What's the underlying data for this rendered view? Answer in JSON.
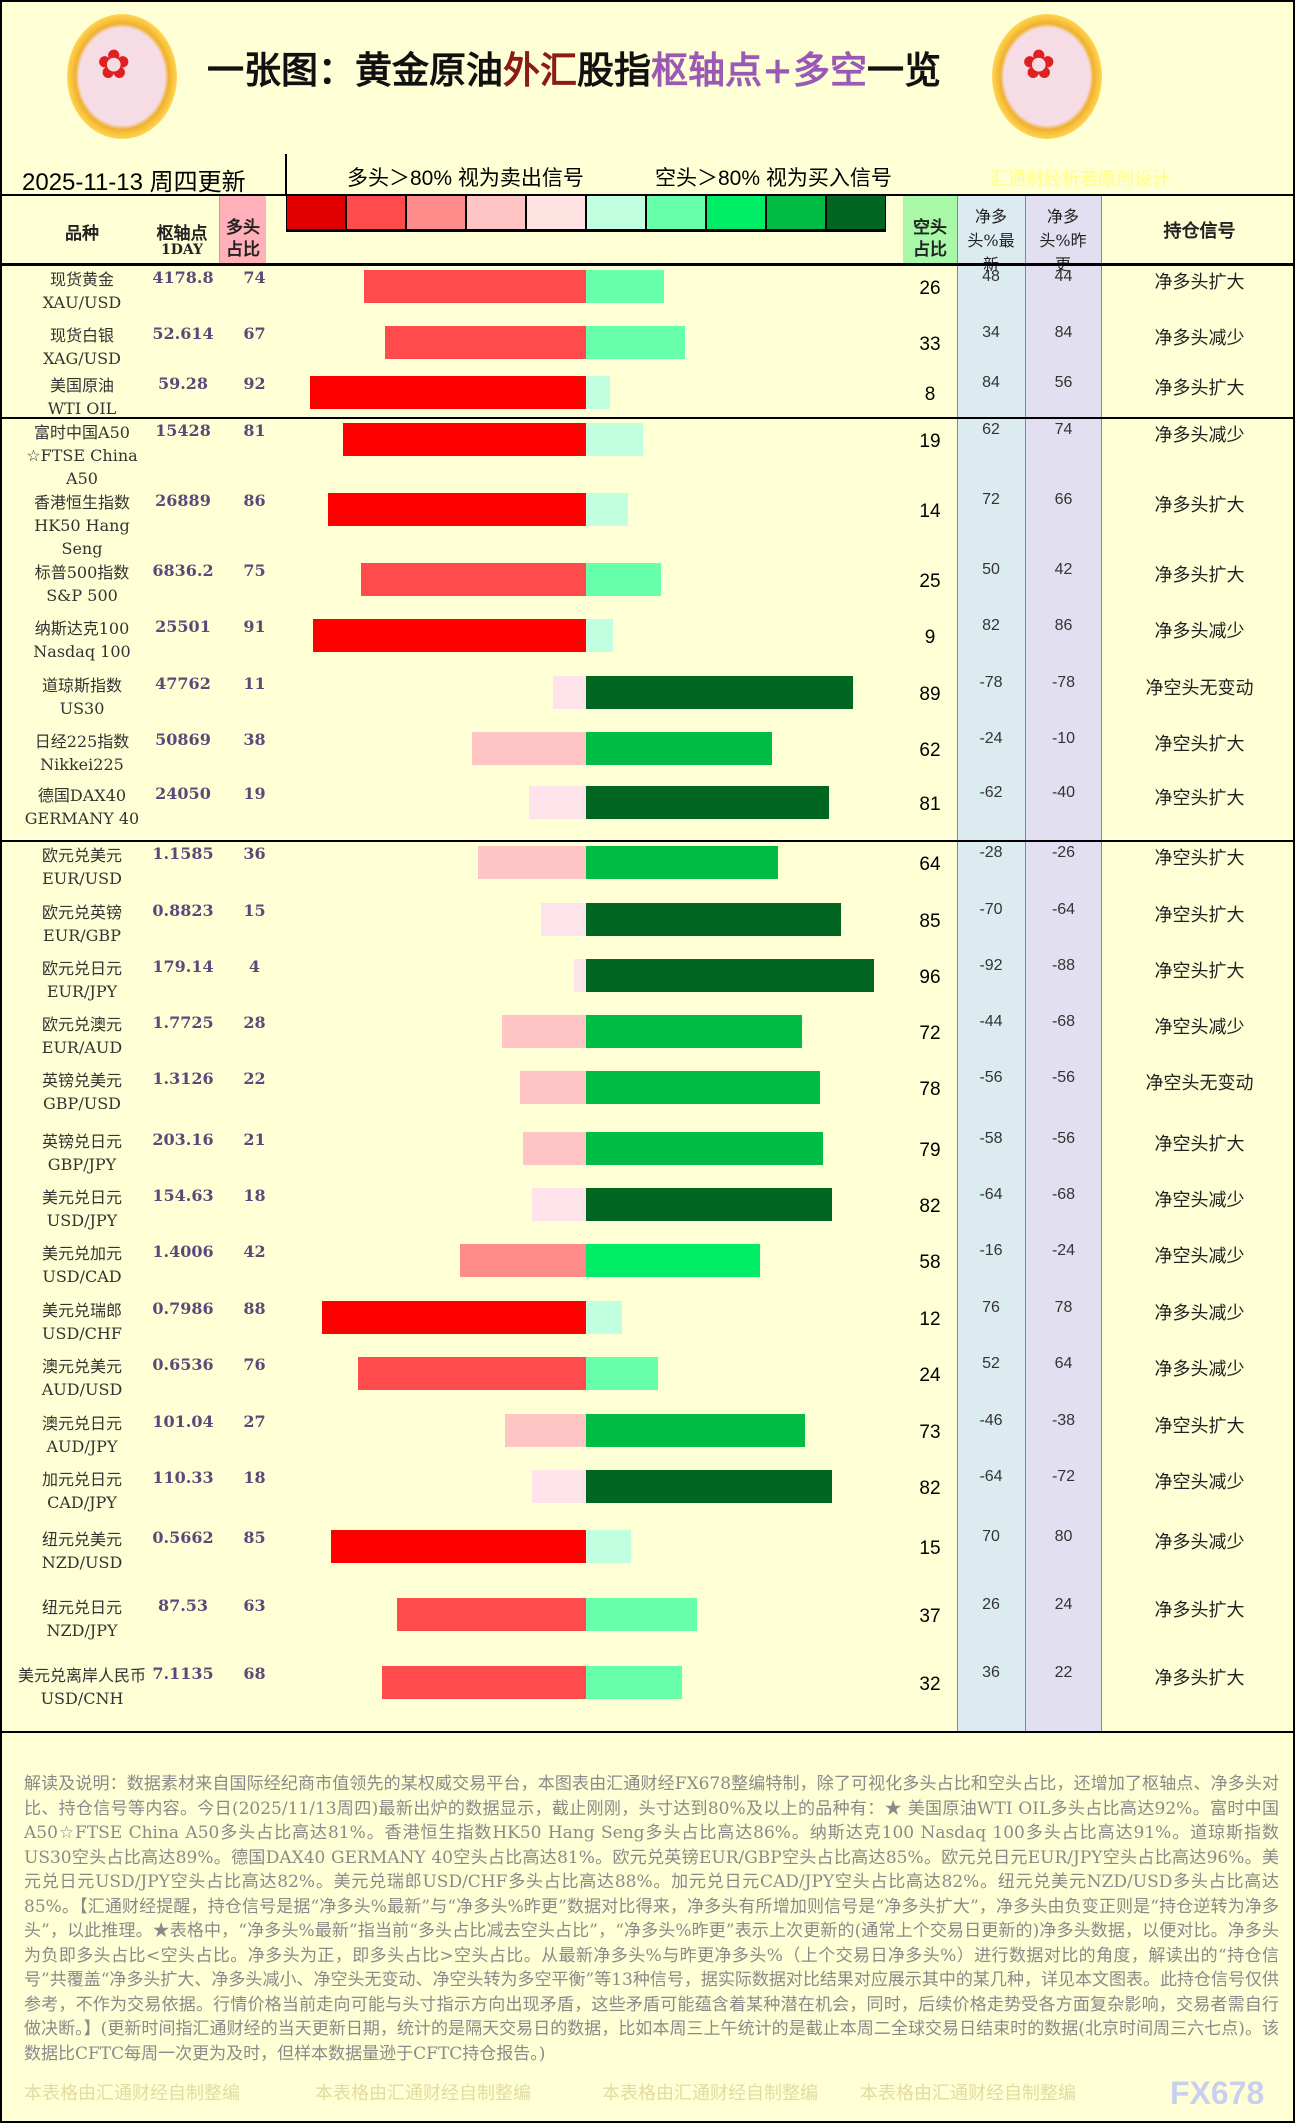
{
  "title": {
    "part1": "一张图：黄金原油",
    "part2": "外汇",
    "part3": "股指",
    "part4": "枢轴点+多空",
    "part5": "一览"
  },
  "date": "2025-11-13 周四更新",
  "long_signal": "多头＞80% 视为卖出信号",
  "short_signal": "空头＞80% 视为买入信号",
  "credit": "汇通财经析若原创设计",
  "headers": {
    "name": "品种",
    "pivot": "枢轴点",
    "pivot_sub": "1DAY",
    "long": "多头占比",
    "short": "空头占比",
    "net": "净多头%最新",
    "prev": "净多头%昨更",
    "signal": "持仓信号"
  },
  "legend_colors": [
    "#e00000",
    "#ff4b4b",
    "#ff8a8a",
    "#ffc4c4",
    "#ffe3e3",
    "#c0ffe0",
    "#66ffaa",
    "#00ee66",
    "#00bb44",
    "#006622"
  ],
  "rows": [
    {
      "name": "现货黄金",
      "code": "XAU/USD",
      "pivot": "4178.8",
      "long": 74,
      "short": 26,
      "net": "48",
      "prev": "44",
      "signal": "净多头扩大"
    },
    {
      "name": "现货白银",
      "code": "XAG/USD",
      "pivot": "52.614",
      "long": 67,
      "short": 33,
      "net": "34",
      "prev": "84",
      "signal": "净多头减少"
    },
    {
      "name": "美国原油",
      "code": "WTI OIL",
      "pivot": "59.28",
      "long": 92,
      "short": 8,
      "net": "84",
      "prev": "56",
      "signal": "净多头扩大"
    },
    {
      "name": "富时中国A50",
      "code": "☆FTSE China A50",
      "pivot": "15428",
      "long": 81,
      "short": 19,
      "net": "62",
      "prev": "74",
      "signal": "净多头减少"
    },
    {
      "name": "香港恒生指数",
      "code": "HK50 Hang Seng",
      "pivot": "26889",
      "long": 86,
      "short": 14,
      "net": "72",
      "prev": "66",
      "signal": "净多头扩大"
    },
    {
      "name": "标普500指数",
      "code": "S&P 500",
      "pivot": "6836.2",
      "long": 75,
      "short": 25,
      "net": "50",
      "prev": "42",
      "signal": "净多头扩大"
    },
    {
      "name": "纳斯达克100",
      "code": "Nasdaq 100",
      "pivot": "25501",
      "long": 91,
      "short": 9,
      "net": "82",
      "prev": "86",
      "signal": "净多头减少"
    },
    {
      "name": "道琼斯指数",
      "code": "US30",
      "pivot": "47762",
      "long": 11,
      "short": 89,
      "net": "-78",
      "prev": "-78",
      "signal": "净空头无变动"
    },
    {
      "name": "日经225指数",
      "code": "Nikkei225",
      "pivot": "50869",
      "long": 38,
      "short": 62,
      "net": "-24",
      "prev": "-10",
      "signal": "净空头扩大"
    },
    {
      "name": "德国DAX40",
      "code": "GERMANY 40",
      "pivot": "24050",
      "long": 19,
      "short": 81,
      "net": "-62",
      "prev": "-40",
      "signal": "净空头扩大"
    },
    {
      "name": "欧元兑美元",
      "code": "EUR/USD",
      "pivot": "1.1585",
      "long": 36,
      "short": 64,
      "net": "-28",
      "prev": "-26",
      "signal": "净空头扩大"
    },
    {
      "name": "欧元兑英镑",
      "code": "EUR/GBP",
      "pivot": "0.8823",
      "long": 15,
      "short": 85,
      "net": "-70",
      "prev": "-64",
      "signal": "净空头扩大"
    },
    {
      "name": "欧元兑日元",
      "code": "EUR/JPY",
      "pivot": "179.14",
      "long": 4,
      "short": 96,
      "net": "-92",
      "prev": "-88",
      "signal": "净空头扩大"
    },
    {
      "name": "欧元兑澳元",
      "code": "EUR/AUD",
      "pivot": "1.7725",
      "long": 28,
      "short": 72,
      "net": "-44",
      "prev": "-68",
      "signal": "净空头减少"
    },
    {
      "name": "英镑兑美元",
      "code": "GBP/USD",
      "pivot": "1.3126",
      "long": 22,
      "short": 78,
      "net": "-56",
      "prev": "-56",
      "signal": "净空头无变动"
    },
    {
      "name": "英镑兑日元",
      "code": "GBP/JPY",
      "pivot": "203.16",
      "long": 21,
      "short": 79,
      "net": "-58",
      "prev": "-56",
      "signal": "净空头扩大"
    },
    {
      "name": "美元兑日元",
      "code": "USD/JPY",
      "pivot": "154.63",
      "long": 18,
      "short": 82,
      "net": "-64",
      "prev": "-68",
      "signal": "净空头减少"
    },
    {
      "name": "美元兑加元",
      "code": "USD/CAD",
      "pivot": "1.4006",
      "long": 42,
      "short": 58,
      "net": "-16",
      "prev": "-24",
      "signal": "净空头减少"
    },
    {
      "name": "美元兑瑞郎",
      "code": "USD/CHF",
      "pivot": "0.7986",
      "long": 88,
      "short": 12,
      "net": "76",
      "prev": "78",
      "signal": "净多头减少"
    },
    {
      "name": "澳元兑美元",
      "code": "AUD/USD",
      "pivot": "0.6536",
      "long": 76,
      "short": 24,
      "net": "52",
      "prev": "64",
      "signal": "净多头减少"
    },
    {
      "name": "澳元兑日元",
      "code": "AUD/JPY",
      "pivot": "101.04",
      "long": 27,
      "short": 73,
      "net": "-46",
      "prev": "-38",
      "signal": "净空头扩大"
    },
    {
      "name": "加元兑日元",
      "code": "CAD/JPY",
      "pivot": "110.33",
      "long": 18,
      "short": 82,
      "net": "-64",
      "prev": "-72",
      "signal": "净空头减少"
    },
    {
      "name": "纽元兑美元",
      "code": "NZD/USD",
      "pivot": "0.5662",
      "long": 85,
      "short": 15,
      "net": "70",
      "prev": "80",
      "signal": "净多头减少"
    },
    {
      "name": "纽元兑日元",
      "code": "NZD/JPY",
      "pivot": "87.53",
      "long": 63,
      "short": 37,
      "net": "26",
      "prev": "24",
      "signal": "净多头扩大"
    },
    {
      "name": "美元兑离岸人民币",
      "code": "USD/CNH",
      "pivot": "7.1135",
      "long": 68,
      "short": 32,
      "net": "36",
      "prev": "22",
      "signal": "净多头扩大"
    }
  ],
  "explanation": "解读及说明：数据素材来自国际经纪商市值领先的某权威交易平台，本图表由汇通财经FX678整编特制，除了可视化多头占比和空头占比，还增加了枢轴点、净多头对比、持仓信号等内容。今日(2025/11/13周四)最新出炉的数据显示，截止刚刚，头寸达到80%及以上的品种有：★ 美国原油WTI OIL多头占比高达92%。富时中国A50☆FTSE China A50多头占比高达81%。香港恒生指数HK50 Hang Seng多头占比高达86%。纳斯达克100 Nasdaq 100多头占比高达91%。道琼斯指数US30空头占比高达89%。德国DAX40 GERMANY 40空头占比高达81%。欧元兑英镑EUR/GBP空头占比高达85%。欧元兑日元EUR/JPY空头占比高达96%。美元兑日元USD/JPY空头占比高达82%。美元兑瑞郎USD/CHF多头占比高达88%。加元兑日元CAD/JPY空头占比高达82%。纽元兑美元NZD/USD多头占比高达85%。【汇通财经提醒，持仓信号是据“净多头%最新”与“净多头%昨更”数据对比得来，净多头有所增加则信号是“净多头扩大”，净多头由负变正则是“持仓逆转为净多头”，以此推理。★表格中，“净多头%最新”指当前“多头占比减去空头占比”，“净多头%昨更”表示上次更新的(通常上个交易日更新的)净多头数据，以便对比。净多头为负即多头占比<空头占比。净多头为正，即多头占比>空头占比。从最新净多头%与昨更净多头%（上个交易日净多头%）进行数据对比的角度，解读出的“持仓信号”共覆盖“净多头扩大、净多头减小、净空头无变动、净空头转为多空平衡”等13种信号，据实际数据对比结果对应展示其中的某几种，详见本文图表。此持仓信号仅供参考，不作为交易依据。行情价格当前走向可能与头寸指示方向出现矛盾，这些矛盾可能蕴含着某种潜在机会，同时，后续价格走势受各方面复杂影响，交易者需自行做决断。】(更新时间指汇通财经的当天更新日期，统计的是隔天交易日的数据，比如本周三上午统计的是截止本周二全球交易日结束时的数据(北京时间周三六七点)。该数据比CFTC每周一次更为及时，但样本数据量逊于CFTC持仓报告。)",
  "watermark": "本表格由汇通财经自制整编",
  "brand": "FX678"
}
